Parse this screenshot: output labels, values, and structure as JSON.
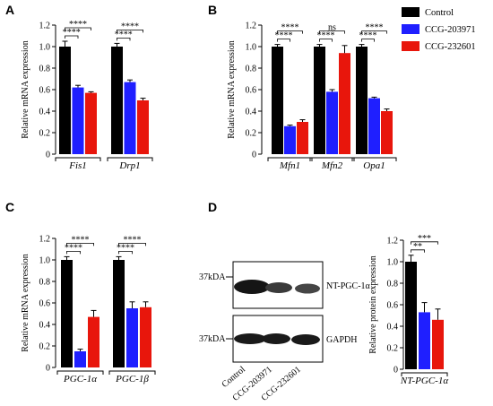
{
  "colors": {
    "control": "#000000",
    "ccg203971": "#1f1fff",
    "ccg232601": "#e8160c"
  },
  "legend": [
    "Control",
    "CCG-203971",
    "CCG-232601"
  ],
  "chart_data": [
    {
      "panel": "A",
      "type": "bar",
      "ylabel": "Relative mRNA expression",
      "ylim": [
        0,
        1.2
      ],
      "yticks": [
        "0",
        "0.2",
        "0.4",
        "0.6",
        "0.8",
        "1.0",
        "1.2"
      ],
      "categories": [
        "Fis1",
        "Drp1"
      ],
      "series": [
        {
          "name": "Control",
          "values": [
            1.0,
            1.0
          ],
          "errors": [
            0.05,
            0.03
          ]
        },
        {
          "name": "CCG-203971",
          "values": [
            0.62,
            0.67
          ],
          "errors": [
            0.02,
            0.02
          ]
        },
        {
          "name": "CCG-232601",
          "values": [
            0.57,
            0.5
          ],
          "errors": [
            0.01,
            0.02
          ]
        }
      ],
      "significance": [
        {
          "cat": 0,
          "from": 0,
          "to": 1,
          "label": "****"
        },
        {
          "cat": 0,
          "from": 0,
          "to": 2,
          "label": "****"
        },
        {
          "cat": 1,
          "from": 0,
          "to": 1,
          "label": "****"
        },
        {
          "cat": 1,
          "from": 0,
          "to": 2,
          "label": "****"
        }
      ]
    },
    {
      "panel": "B",
      "type": "bar",
      "ylabel": "Relative mRNA expression",
      "ylim": [
        0,
        1.2
      ],
      "yticks": [
        "0",
        "0.2",
        "0.4",
        "0.6",
        "0.8",
        "1.0",
        "1.2"
      ],
      "categories": [
        "Mfn1",
        "Mfn2",
        "Opa1"
      ],
      "series": [
        {
          "name": "Control",
          "values": [
            1.0,
            1.0,
            1.0
          ],
          "errors": [
            0.02,
            0.02,
            0.02
          ]
        },
        {
          "name": "CCG-203971",
          "values": [
            0.26,
            0.58,
            0.52
          ],
          "errors": [
            0.01,
            0.02,
            0.01
          ]
        },
        {
          "name": "CCG-232601",
          "values": [
            0.3,
            0.94,
            0.4
          ],
          "errors": [
            0.02,
            0.07,
            0.02
          ]
        }
      ],
      "significance": [
        {
          "cat": 0,
          "from": 0,
          "to": 1,
          "label": "****"
        },
        {
          "cat": 0,
          "from": 0,
          "to": 2,
          "label": "****"
        },
        {
          "cat": 1,
          "from": 0,
          "to": 1,
          "label": "****"
        },
        {
          "cat": 1,
          "from": 0,
          "to": 2,
          "label": "ns"
        },
        {
          "cat": 2,
          "from": 0,
          "to": 1,
          "label": "****"
        },
        {
          "cat": 2,
          "from": 0,
          "to": 2,
          "label": "****"
        }
      ]
    },
    {
      "panel": "C",
      "type": "bar",
      "ylabel": "Relative mRNA expression",
      "ylim": [
        0,
        1.2
      ],
      "yticks": [
        "0",
        "0.2",
        "0.4",
        "0.6",
        "0.8",
        "1.0",
        "1.2"
      ],
      "categories": [
        "PGC-1α",
        "PGC-1β"
      ],
      "series": [
        {
          "name": "Control",
          "values": [
            1.0,
            1.0
          ],
          "errors": [
            0.03,
            0.03
          ]
        },
        {
          "name": "CCG-203971",
          "values": [
            0.15,
            0.55
          ],
          "errors": [
            0.02,
            0.06
          ]
        },
        {
          "name": "CCG-232601",
          "values": [
            0.47,
            0.56
          ],
          "errors": [
            0.06,
            0.05
          ]
        }
      ],
      "significance": [
        {
          "cat": 0,
          "from": 0,
          "to": 1,
          "label": "****"
        },
        {
          "cat": 0,
          "from": 0,
          "to": 2,
          "label": "****"
        },
        {
          "cat": 1,
          "from": 0,
          "to": 1,
          "label": "****"
        },
        {
          "cat": 1,
          "from": 0,
          "to": 2,
          "label": "****"
        }
      ]
    },
    {
      "panel": "D",
      "type": "bar",
      "ylabel": "Relative protein expression",
      "ylim": [
        0,
        1.2
      ],
      "yticks": [
        "0",
        "0.2",
        "0.4",
        "0.6",
        "0.8",
        "1.0",
        "1.2"
      ],
      "categories": [
        "NT-PGC-1α"
      ],
      "series": [
        {
          "name": "Control",
          "values": [
            1.0
          ],
          "errors": [
            0.06
          ]
        },
        {
          "name": "CCG-203971",
          "values": [
            0.53
          ],
          "errors": [
            0.09
          ]
        },
        {
          "name": "CCG-232601",
          "values": [
            0.46
          ],
          "errors": [
            0.1
          ]
        }
      ],
      "significance": [
        {
          "cat": 0,
          "from": 0,
          "to": 1,
          "label": "**"
        },
        {
          "cat": 0,
          "from": 0,
          "to": 2,
          "label": "***"
        }
      ]
    }
  ],
  "blot": {
    "rows": [
      {
        "marker": "37kDA",
        "label": "NT-PGC-1α"
      },
      {
        "marker": "37kDA",
        "label": "GAPDH"
      }
    ],
    "lanes": [
      "Control",
      "CCG-203971",
      "CCG-232601"
    ]
  }
}
